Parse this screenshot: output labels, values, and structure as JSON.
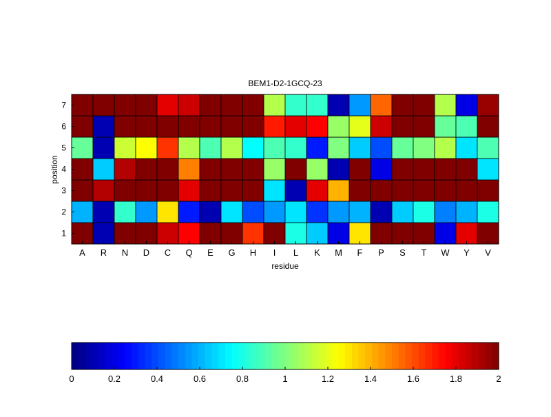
{
  "chart_data": {
    "type": "heatmap",
    "title": "BEM1-D2-1GCQ-23",
    "xlabel": "residue",
    "ylabel": "position",
    "x_categories": [
      "A",
      "R",
      "N",
      "D",
      "C",
      "Q",
      "E",
      "G",
      "H",
      "I",
      "L",
      "K",
      "M",
      "F",
      "P",
      "S",
      "T",
      "W",
      "Y",
      "V"
    ],
    "y_categories": [
      "1",
      "2",
      "3",
      "4",
      "5",
      "6",
      "7"
    ],
    "values": [
      [
        2.0,
        0.1,
        2.0,
        2.0,
        1.85,
        1.75,
        2.0,
        2.0,
        1.65,
        2.0,
        0.8,
        0.65,
        0.2,
        1.3,
        2.0,
        2.0,
        2.0,
        0.2,
        1.8,
        2.0
      ],
      [
        0.6,
        0.1,
        0.85,
        0.55,
        1.3,
        0.3,
        0.1,
        0.7,
        0.4,
        0.55,
        0.7,
        0.35,
        0.55,
        0.6,
        0.1,
        0.65,
        0.8,
        0.5,
        0.6,
        0.8
      ],
      [
        2.0,
        1.9,
        2.0,
        2.0,
        2.0,
        1.8,
        2.0,
        2.0,
        2.0,
        0.7,
        0.1,
        1.8,
        1.4,
        2.0,
        2.0,
        2.0,
        2.0,
        2.0,
        2.0,
        2.0
      ],
      [
        2.0,
        0.65,
        1.9,
        2.0,
        2.0,
        1.5,
        2.0,
        2.0,
        2.0,
        1.05,
        2.0,
        1.05,
        0.1,
        2.0,
        0.2,
        2.0,
        2.0,
        2.0,
        2.0,
        0.7
      ],
      [
        0.95,
        0.1,
        1.15,
        1.25,
        1.65,
        1.1,
        0.9,
        1.1,
        0.75,
        0.9,
        0.85,
        0.3,
        1.0,
        0.65,
        0.4,
        0.95,
        1.0,
        1.1,
        0.7,
        0.9
      ],
      [
        2.0,
        0.1,
        2.0,
        2.0,
        2.0,
        2.0,
        2.0,
        2.0,
        2.0,
        1.7,
        1.8,
        1.75,
        1.05,
        1.2,
        1.85,
        2.0,
        2.0,
        0.95,
        0.9,
        2.0
      ],
      [
        2.0,
        2.0,
        2.0,
        2.0,
        1.8,
        1.85,
        2.0,
        2.0,
        2.0,
        1.1,
        0.85,
        0.85,
        0.1,
        0.55,
        1.55,
        2.0,
        2.0,
        1.1,
        0.2,
        1.95
      ]
    ],
    "value_range": [
      0,
      2
    ],
    "colormap": "jet",
    "colorbar": {
      "orientation": "horizontal",
      "ticks": [
        "0",
        "0.2",
        "0.4",
        "0.6",
        "0.8",
        "1",
        "1.2",
        "1.4",
        "1.6",
        "1.8",
        "2"
      ]
    },
    "grid": true
  }
}
